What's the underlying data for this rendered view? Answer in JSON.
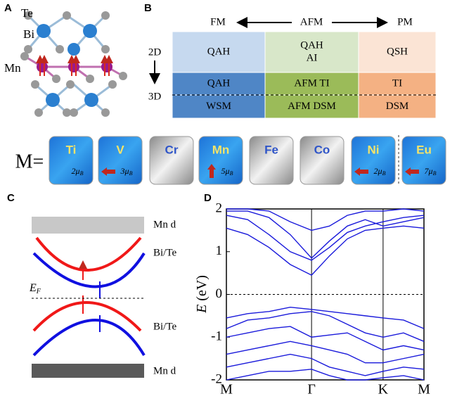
{
  "panels": {
    "A": {
      "label": "A",
      "atoms": {
        "te": "Te",
        "bi": "Bi",
        "mn": "Mn"
      }
    },
    "B": {
      "label": "B",
      "header": {
        "fm": "FM",
        "afm": "AFM",
        "pm": "PM"
      },
      "rows": {
        "d2": "2D",
        "d3": "3D"
      },
      "table": [
        [
          [
            "QAH"
          ],
          [
            "QAH",
            "AI"
          ],
          [
            "QSH"
          ]
        ],
        [
          [
            "QAH"
          ],
          [
            "AFM TI"
          ],
          [
            "TI"
          ]
        ],
        [
          [
            "WSM"
          ],
          [
            "AFM DSM"
          ],
          [
            "DSM"
          ]
        ]
      ],
      "prefix": "M=",
      "elements": [
        {
          "symbol": "Ti",
          "moment": "2μ",
          "moment_sub": "B"
        },
        {
          "symbol": "V",
          "moment": "3μ",
          "moment_sub": "B"
        },
        {
          "symbol": "Cr"
        },
        {
          "symbol": "Mn",
          "moment": "5μ",
          "moment_sub": "B"
        },
        {
          "symbol": "Fe"
        },
        {
          "symbol": "Co"
        },
        {
          "symbol": "Ni",
          "moment": "2μ",
          "moment_sub": "B"
        },
        {
          "symbol": "Eu",
          "moment": "7μ",
          "moment_sub": "B"
        }
      ]
    },
    "C": {
      "label": "C",
      "levels": [
        "Mn d",
        "Bi/Te",
        "Bi/Te",
        "Mn d"
      ],
      "fermi": "E",
      "fermi_sub": "F"
    },
    "D": {
      "label": "D"
    }
  },
  "chart_data": {
    "type": "line",
    "ylabel_var": "E",
    "ylabel_unit": "(eV)",
    "x": [
      0,
      0.25,
      0.5,
      0.75,
      1,
      1.21,
      1.42,
      1.63,
      1.84,
      2.08,
      2.32
    ],
    "series": [
      {
        "color": "#1a1adb",
        "values": [
          1.55,
          1.4,
          1.1,
          0.7,
          0.45,
          0.9,
          1.3,
          1.5,
          1.55,
          1.6,
          1.55
        ]
      },
      {
        "color": "#1a1adb",
        "values": [
          1.85,
          1.75,
          1.4,
          1.0,
          0.8,
          1.1,
          1.45,
          1.6,
          1.7,
          1.8,
          1.85
        ]
      },
      {
        "color": "#1a1adb",
        "values": [
          1.95,
          1.95,
          1.8,
          1.4,
          0.85,
          1.25,
          1.6,
          1.75,
          1.6,
          1.7,
          1.8
        ]
      },
      {
        "color": "#1a1adb",
        "values": [
          2.0,
          2.0,
          1.95,
          1.7,
          1.5,
          1.6,
          1.85,
          1.95,
          1.95,
          2.0,
          1.95
        ]
      },
      {
        "color": "#1a1adb",
        "values": [
          -0.55,
          -0.45,
          -0.4,
          -0.3,
          -0.35,
          -0.4,
          -0.45,
          -0.5,
          -0.55,
          -0.6,
          -0.8
        ]
      },
      {
        "color": "#1a1adb",
        "values": [
          -0.8,
          -0.6,
          -0.55,
          -0.45,
          -0.4,
          -0.5,
          -0.7,
          -0.9,
          -1.0,
          -0.9,
          -1.1
        ]
      },
      {
        "color": "#1a1adb",
        "values": [
          -1.0,
          -0.9,
          -0.8,
          -0.75,
          -1.0,
          -0.95,
          -0.9,
          -1.1,
          -1.3,
          -1.2,
          -1.3
        ]
      },
      {
        "color": "#1a1adb",
        "values": [
          -1.4,
          -1.3,
          -1.2,
          -1.1,
          -1.2,
          -1.3,
          -1.4,
          -1.6,
          -1.6,
          -1.5,
          -1.4
        ]
      },
      {
        "color": "#1a1adb",
        "values": [
          -1.7,
          -1.6,
          -1.5,
          -1.4,
          -1.5,
          -1.7,
          -1.8,
          -1.9,
          -1.8,
          -1.7,
          -1.75
        ]
      },
      {
        "color": "#1a1adb",
        "values": [
          -2.0,
          -1.9,
          -1.8,
          -1.8,
          -1.75,
          -1.9,
          -2.0,
          -2.0,
          -1.95,
          -1.9,
          -2.0
        ]
      }
    ],
    "xlim": [
      0,
      2.32
    ],
    "ylim": [
      -2,
      2
    ],
    "xticks": [
      {
        "value": 0,
        "label": "M"
      },
      {
        "value": 1,
        "label": "Γ"
      },
      {
        "value": 1.84,
        "label": "K"
      },
      {
        "value": 2.32,
        "label": "M"
      }
    ],
    "yticks": [
      -2,
      -1,
      0,
      1,
      2
    ],
    "fermi_level": 0
  }
}
